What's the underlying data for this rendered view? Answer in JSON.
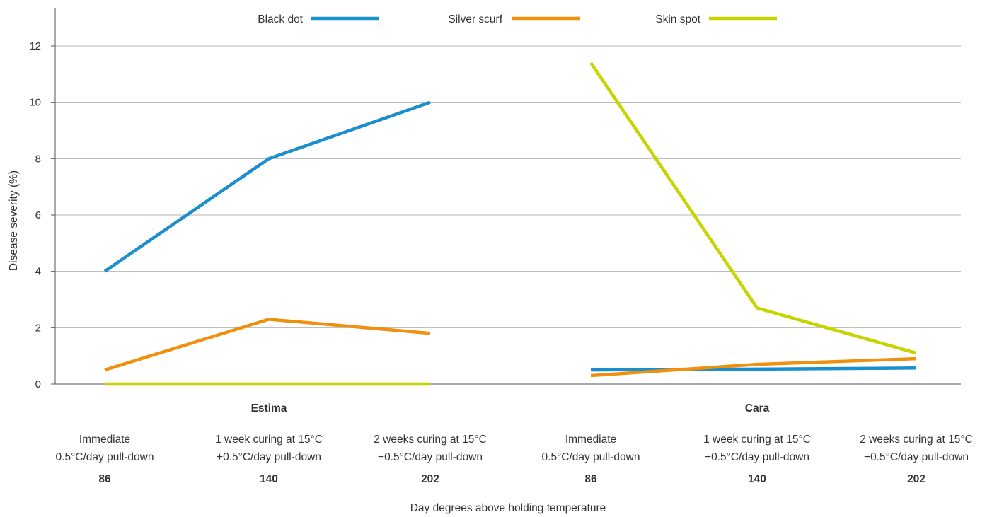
{
  "chart_data": {
    "type": "line",
    "ylabel": "Disease severity (%)",
    "xlabel": "Day degrees above holding temperature",
    "ylim": [
      0,
      13
    ],
    "yticks": [
      0,
      2,
      4,
      6,
      8,
      10,
      12
    ],
    "grid": true,
    "legend_position": "top-center",
    "groups": [
      {
        "label": "Estima"
      },
      {
        "label": "Cara"
      }
    ],
    "categories": [
      {
        "line1": "Immediate",
        "line2": "0.5°C/day pull-down",
        "value": "86"
      },
      {
        "line1": "1 week curing at 15°C",
        "line2": "+0.5°C/day pull-down",
        "value": "140"
      },
      {
        "line1": "2 weeks curing at 15°C",
        "line2": "+0.5°C/day pull-down",
        "value": "202"
      },
      {
        "line1": "Immediate",
        "line2": "0.5°C/day pull-down",
        "value": "86"
      },
      {
        "line1": "1 week curing at 15°C",
        "line2": "+0.5°C/day pull-down",
        "value": "140"
      },
      {
        "line1": "2 weeks curing at 15°C",
        "line2": "+0.5°C/day pull-down",
        "value": "202"
      }
    ],
    "series": [
      {
        "name": "Black dot",
        "color": "#1a8fce",
        "values": [
          [
            4.0,
            8.0,
            10.0
          ],
          [
            0.5,
            0.53,
            0.57
          ]
        ]
      },
      {
        "name": "Silver scurf",
        "color": "#f0900f",
        "values": [
          [
            0.5,
            2.3,
            1.8
          ],
          [
            0.3,
            0.7,
            0.9
          ]
        ]
      },
      {
        "name": "Skin spot",
        "color": "#c8d400",
        "values": [
          [
            0.0,
            0.0,
            0.0
          ],
          [
            11.4,
            2.7,
            1.1
          ]
        ]
      }
    ]
  }
}
